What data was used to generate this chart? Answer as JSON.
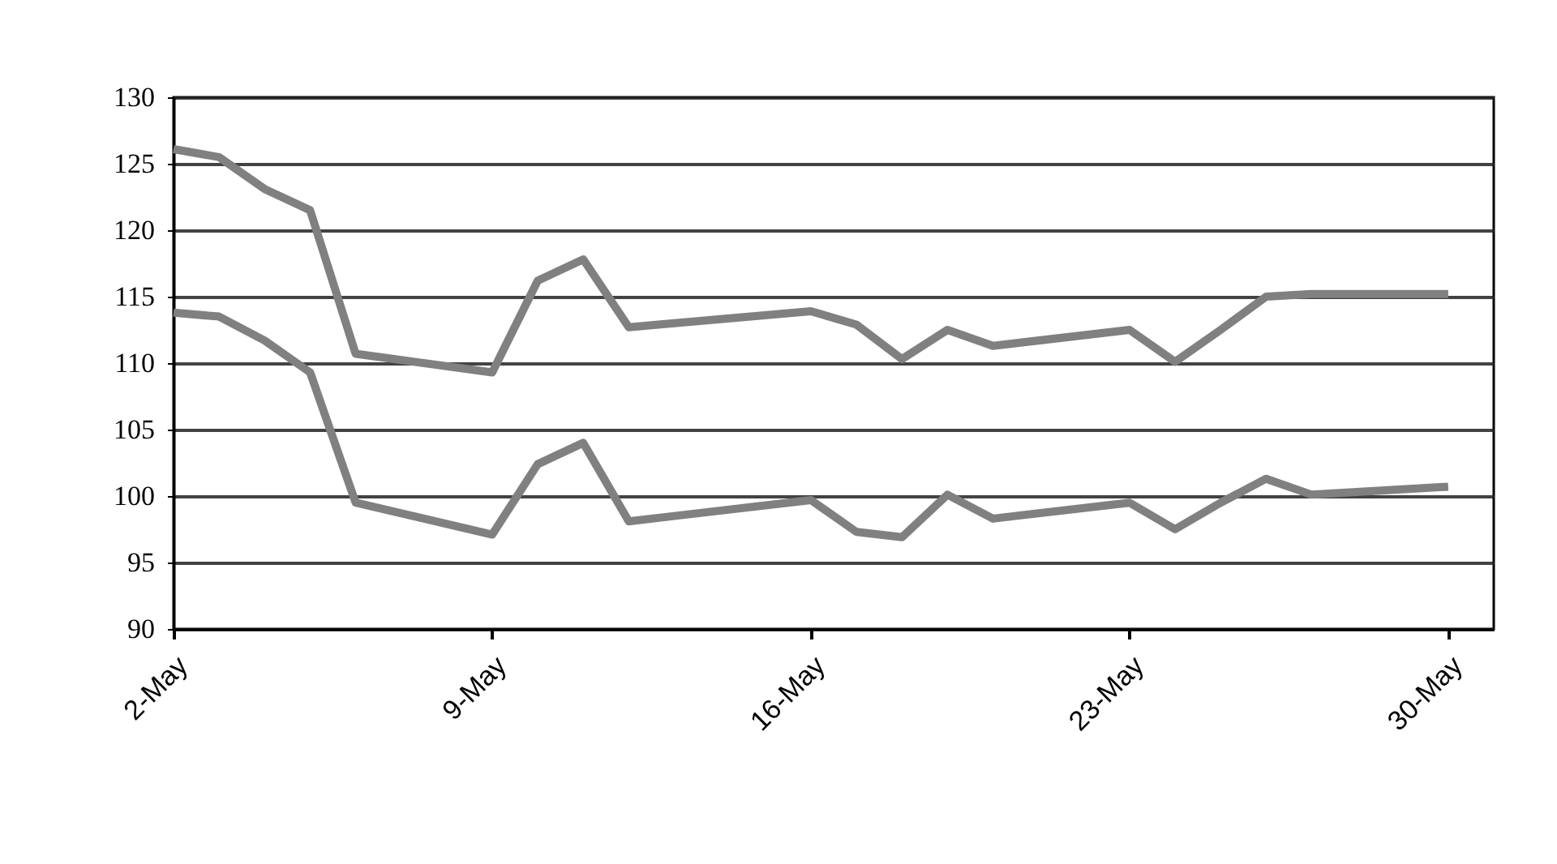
{
  "chart_data": {
    "type": "line",
    "x": [
      "--05-02",
      "--05-03",
      "--05-04",
      "--05-05",
      "--05-06",
      "--05-09",
      "--05-10",
      "--05-11",
      "--05-12",
      "--05-13",
      "--05-16",
      "--05-17",
      "--05-18",
      "--05-19",
      "--05-20",
      "--05-23",
      "--05-24",
      "--05-25",
      "--05-26",
      "--05-27",
      "--05-30"
    ],
    "series": [
      {
        "color": "#808080",
        "values": [
          126.1,
          125.5,
          123.1,
          121.5,
          110.7,
          109.3,
          116.2,
          117.8,
          112.7,
          113.0,
          113.9,
          112.9,
          110.3,
          112.5,
          111.3,
          112.5,
          110.1,
          112.5,
          115.0,
          115.2,
          115.2
        ]
      },
      {
        "color": "#808080",
        "values": [
          113.8,
          113.5,
          111.7,
          109.3,
          99.5,
          97.1,
          102.4,
          104.0,
          98.1,
          98.5,
          99.7,
          97.3,
          96.9,
          100.1,
          98.3,
          99.5,
          97.5,
          99.5,
          101.3,
          100.1,
          100.7
        ]
      }
    ],
    "xlim": [
      "--05-02",
      "--05-31"
    ],
    "xticks": [
      {
        "value": "--05-02",
        "label": "2-May"
      },
      {
        "value": "--05-09",
        "label": "9-May"
      },
      {
        "value": "--05-16",
        "label": "16-May"
      },
      {
        "value": "--05-23",
        "label": "23-May"
      },
      {
        "value": "--05-30",
        "label": "30-May"
      }
    ],
    "ylim": [
      90,
      130
    ],
    "yticks": [
      90,
      95,
      100,
      105,
      110,
      115,
      120,
      125,
      130
    ],
    "grid": "y",
    "legend": false,
    "marker": "none",
    "line_style": "solid"
  }
}
